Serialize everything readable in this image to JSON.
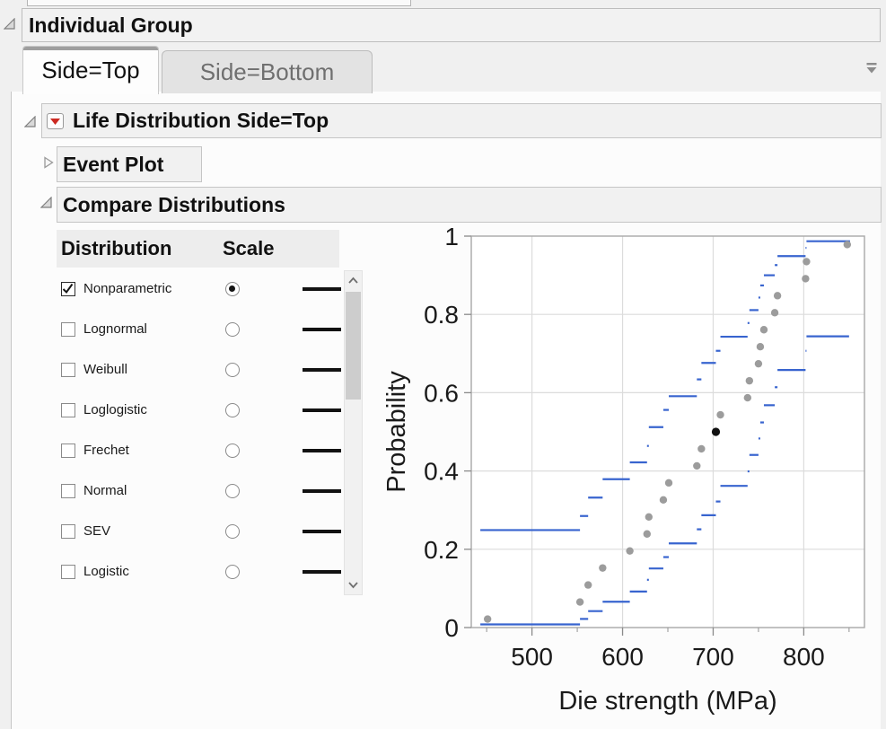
{
  "group_header": {
    "title": "Individual Group"
  },
  "tabs": [
    {
      "label": "Side=Top",
      "active": true
    },
    {
      "label": "Side=Bottom",
      "active": false
    }
  ],
  "sections": {
    "life_distribution": {
      "title": "Life Distribution Side=Top",
      "state": "open",
      "has_red_triangle_menu": true
    },
    "event_plot": {
      "title": "Event Plot",
      "state": "closed"
    },
    "compare_distributions": {
      "title": "Compare Distributions",
      "state": "open"
    }
  },
  "distribution_table": {
    "columns": [
      "Distribution",
      "Scale",
      ""
    ],
    "rows": [
      {
        "label": "Nonparametric",
        "checked": true,
        "scale_selected": true
      },
      {
        "label": "Lognormal",
        "checked": false,
        "scale_selected": false
      },
      {
        "label": "Weibull",
        "checked": false,
        "scale_selected": false
      },
      {
        "label": "Loglogistic",
        "checked": false,
        "scale_selected": false
      },
      {
        "label": "Frechet",
        "checked": false,
        "scale_selected": false
      },
      {
        "label": "Normal",
        "checked": false,
        "scale_selected": false
      },
      {
        "label": "SEV",
        "checked": false,
        "scale_selected": false
      },
      {
        "label": "Logistic",
        "checked": false,
        "scale_selected": false
      }
    ]
  },
  "icons": {
    "disclosure_open": "open-triangle",
    "disclosure_closed": "right-triangle",
    "red_triangle_menu": "red-triangle-down",
    "collapse_all": "bar-and-triangle-down",
    "scroll_up": "chevron-up",
    "scroll_down": "chevron-down"
  },
  "colors": {
    "band_blue": "#3864cf",
    "point_gray": "#9c9c9c",
    "point_black": "#101010",
    "gridline": "#dcdcdc",
    "frame": "#a8a8a8",
    "red_triangle": "#cc2a22",
    "text": "#1a1a1a"
  },
  "chart_data": {
    "type": "scatter",
    "title": "",
    "xlabel": "Die strength (MPa)",
    "ylabel": "Probability",
    "xlim": [
      433,
      867
    ],
    "ylim": [
      0,
      1
    ],
    "xticks": [
      500,
      600,
      700,
      800
    ],
    "xminorticks": [
      450,
      550,
      650,
      750,
      850
    ],
    "yticks": [
      0,
      0.2,
      0.4,
      0.6,
      0.8,
      1
    ],
    "ytick_labels": [
      "0",
      "0.2",
      "0.4",
      "0.6",
      "0.8",
      "1"
    ],
    "grid": true,
    "legend": "none",
    "points_note": "nonparametric midpoint probability estimates vs die strength; median point drawn black",
    "median_index": 11,
    "points": [
      [
        451,
        0.0217
      ],
      [
        553,
        0.0652
      ],
      [
        562,
        0.1087
      ],
      [
        578,
        0.1522
      ],
      [
        608,
        0.1957
      ],
      [
        627,
        0.2391
      ],
      [
        629,
        0.2826
      ],
      [
        645,
        0.3261
      ],
      [
        651,
        0.3696
      ],
      [
        682,
        0.413
      ],
      [
        687,
        0.4565
      ],
      [
        703,
        0.5
      ],
      [
        708,
        0.5435
      ],
      [
        738,
        0.587
      ],
      [
        740,
        0.6304
      ],
      [
        750,
        0.6739
      ],
      [
        752,
        0.7174
      ],
      [
        756,
        0.7609
      ],
      [
        768,
        0.8043
      ],
      [
        771,
        0.8478
      ],
      [
        802,
        0.8913
      ],
      [
        803,
        0.9348
      ],
      [
        848,
        0.9783
      ]
    ],
    "upper_band_segments": [
      [
        443,
        553,
        0.249
      ],
      [
        553,
        562,
        0.285
      ],
      [
        562,
        578,
        0.332
      ],
      [
        578,
        608,
        0.379
      ],
      [
        608,
        627,
        0.422
      ],
      [
        627,
        629,
        0.464
      ],
      [
        629,
        645,
        0.512
      ],
      [
        645,
        651,
        0.556
      ],
      [
        651,
        682,
        0.591
      ],
      [
        682,
        687,
        0.634
      ],
      [
        687,
        703,
        0.676
      ],
      [
        703,
        708,
        0.707
      ],
      [
        708,
        738,
        0.743
      ],
      [
        738,
        740,
        0.778
      ],
      [
        740,
        750,
        0.811
      ],
      [
        750,
        752,
        0.843
      ],
      [
        752,
        756,
        0.874
      ],
      [
        756,
        768,
        0.9
      ],
      [
        768,
        771,
        0.926
      ],
      [
        771,
        802,
        0.949
      ],
      [
        802,
        803,
        0.97
      ],
      [
        803,
        851,
        0.987
      ]
    ],
    "lower_band_segments": [
      [
        443,
        553,
        0.008
      ],
      [
        553,
        562,
        0.022
      ],
      [
        562,
        578,
        0.042
      ],
      [
        578,
        608,
        0.066
      ],
      [
        608,
        627,
        0.092
      ],
      [
        627,
        629,
        0.122
      ],
      [
        629,
        645,
        0.151
      ],
      [
        645,
        651,
        0.18
      ],
      [
        651,
        682,
        0.215
      ],
      [
        682,
        687,
        0.251
      ],
      [
        687,
        703,
        0.287
      ],
      [
        703,
        708,
        0.322
      ],
      [
        708,
        738,
        0.362
      ],
      [
        738,
        740,
        0.399
      ],
      [
        740,
        750,
        0.441
      ],
      [
        750,
        752,
        0.483
      ],
      [
        752,
        756,
        0.524
      ],
      [
        756,
        768,
        0.568
      ],
      [
        768,
        771,
        0.614
      ],
      [
        771,
        802,
        0.658
      ],
      [
        802,
        803,
        0.707
      ],
      [
        803,
        850,
        0.744
      ]
    ]
  }
}
